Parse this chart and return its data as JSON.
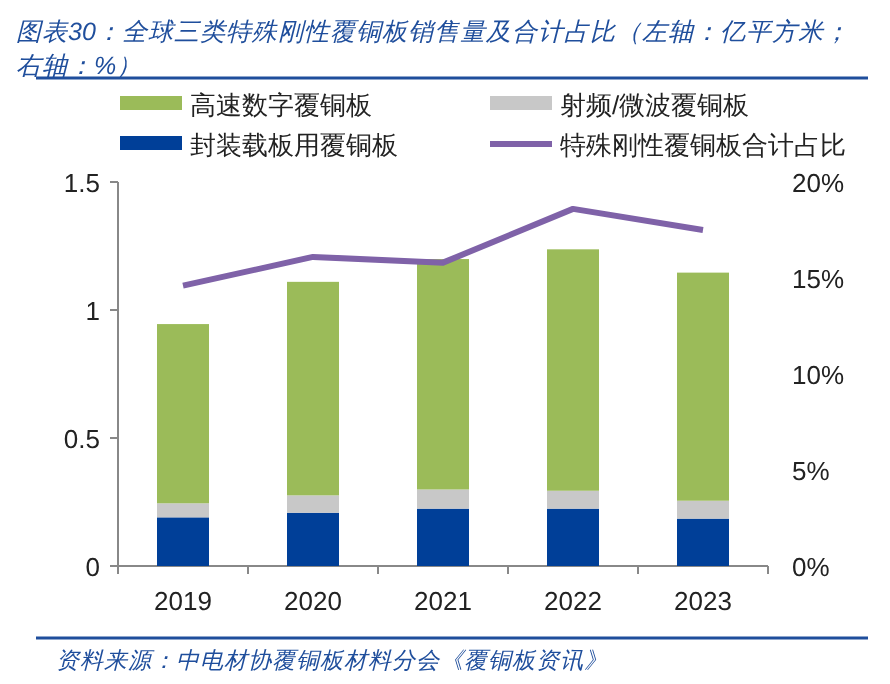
{
  "chart_data": {
    "type": "bar",
    "stacked": true,
    "title": "图表30：全球三类特殊刚性覆铜板销售量及合计占比（左轴：亿平方米；右轴：%）",
    "categories": [
      "2019",
      "2020",
      "2021",
      "2022",
      "2023"
    ],
    "series": [
      {
        "name": "封装载板用覆铜板",
        "color": "#003f98",
        "values": [
          0.19,
          0.208,
          0.224,
          0.224,
          0.185
        ]
      },
      {
        "name": "射频/微波覆铜板",
        "color": "#c8c8c8",
        "values": [
          0.055,
          0.068,
          0.075,
          0.07,
          0.07
        ]
      },
      {
        "name": "高速数字覆铜板",
        "color": "#9bbb59",
        "values": [
          0.7,
          0.834,
          0.9,
          0.943,
          0.891
        ]
      },
      {
        "name": "特殊刚性覆铜板合计占比",
        "type": "line",
        "axis": "y2",
        "color": "#7f62a8",
        "values": [
          14.6,
          16.1,
          15.8,
          18.6,
          17.5
        ]
      }
    ],
    "ylim": [
      0,
      1.5
    ],
    "yticks": [
      0,
      0.5,
      1,
      1.5
    ],
    "y2lim": [
      0,
      20
    ],
    "y2ticks": [
      {
        "value": 0,
        "label": "0%"
      },
      {
        "value": 5,
        "label": "5%"
      },
      {
        "value": 10,
        "label": "10%"
      },
      {
        "value": 15,
        "label": "15%"
      },
      {
        "value": 20,
        "label": "20%"
      }
    ],
    "legend": "top",
    "grid": false,
    "annotations": [
      "资料来源：中电材协覆铜板材料分会《覆铜板资讯》"
    ]
  }
}
